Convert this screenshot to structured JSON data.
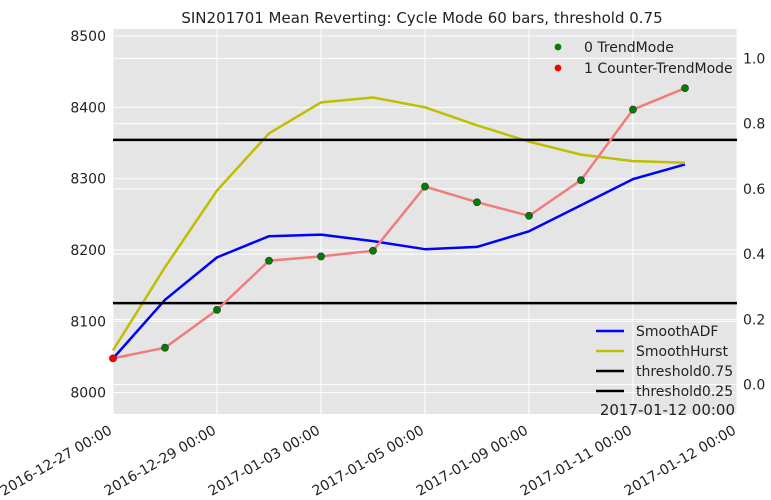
{
  "chart_data": {
    "type": "line",
    "title": "SIN201701 Mean Reverting: Cycle Mode 60 bars, threshold 0.75",
    "x_tick_labels": [
      "2016-12-27 00:00",
      "2016-12-29 00:00",
      "2017-01-03 00:00",
      "2017-01-05 00:00",
      "2017-01-09 00:00",
      "2017-01-11 00:00",
      "2017-01-12 00:00"
    ],
    "x_tick_positions": [
      0,
      2,
      4,
      6,
      8,
      10,
      12
    ],
    "xlim": [
      0,
      12
    ],
    "cursor_readout": "2017-01-12 00:00",
    "y_left": {
      "ylim": [
        7970,
        8510
      ],
      "ticks": [
        8000,
        8100,
        8200,
        8300,
        8400,
        8500
      ]
    },
    "y_right": {
      "ylim": [
        -0.09,
        1.09
      ],
      "ticks": [
        0.0,
        0.2,
        0.4,
        0.6,
        0.8,
        1.0
      ]
    },
    "grid": true,
    "price": {
      "color": "#f07c7c",
      "x": [
        0,
        1,
        2,
        3,
        4,
        5,
        6,
        7,
        8,
        9,
        10,
        11,
        12
      ],
      "values": [
        8048,
        8063,
        8116,
        8185,
        8191,
        8199,
        8289,
        8267,
        8248,
        8298,
        8397,
        8427,
        null
      ]
    },
    "markers": {
      "legend_top_right": [
        {
          "label": "0 TrendMode",
          "color": "#008000"
        },
        {
          "label": "1 Counter-TrendMode",
          "color": "#ff0000"
        }
      ],
      "points": [
        {
          "x": 0,
          "y": 8048,
          "mode": 1
        },
        {
          "x": 1,
          "y": 8063,
          "mode": 0
        },
        {
          "x": 2,
          "y": 8116,
          "mode": 0
        },
        {
          "x": 3,
          "y": 8185,
          "mode": 0
        },
        {
          "x": 4,
          "y": 8191,
          "mode": 0
        },
        {
          "x": 5,
          "y": 8199,
          "mode": 0
        },
        {
          "x": 6,
          "y": 8289,
          "mode": 0
        },
        {
          "x": 7,
          "y": 8267,
          "mode": 0
        },
        {
          "x": 8,
          "y": 8248,
          "mode": 0
        },
        {
          "x": 9,
          "y": 8298,
          "mode": 0
        },
        {
          "x": 10,
          "y": 8397,
          "mode": 0
        },
        {
          "x": 11,
          "y": 8427,
          "mode": 0
        }
      ]
    },
    "series": [
      {
        "name": "SmoothADF",
        "color": "#0000ff",
        "axis": "right",
        "x": [
          0,
          1,
          2,
          3,
          4,
          5,
          6,
          7,
          8,
          9,
          10,
          11,
          12
        ],
        "values": [
          0.08,
          0.26,
          0.39,
          0.455,
          0.46,
          0.44,
          0.415,
          0.422,
          0.47,
          0.55,
          0.63,
          0.675,
          null
        ]
      },
      {
        "name": "SmoothHurst",
        "color": "#bfbf00",
        "axis": "right",
        "x": [
          0,
          1,
          2,
          3,
          4,
          5,
          6,
          7,
          8,
          9,
          10,
          11,
          12
        ],
        "values": [
          0.105,
          0.36,
          0.595,
          0.77,
          0.865,
          0.88,
          0.85,
          0.795,
          0.745,
          0.705,
          0.685,
          0.68,
          null
        ]
      },
      {
        "name": "threshold0.75",
        "color": "#000000",
        "axis": "right",
        "x": [
          0,
          12
        ],
        "values": [
          0.75,
          0.75
        ]
      },
      {
        "name": "threshold0.25",
        "color": "#000000",
        "axis": "right",
        "x": [
          0,
          12
        ],
        "values": [
          0.25,
          0.25
        ]
      }
    ],
    "legend_bottom_right": [
      "SmoothADF",
      "SmoothHurst",
      "threshold0.75",
      "threshold0.25"
    ]
  }
}
